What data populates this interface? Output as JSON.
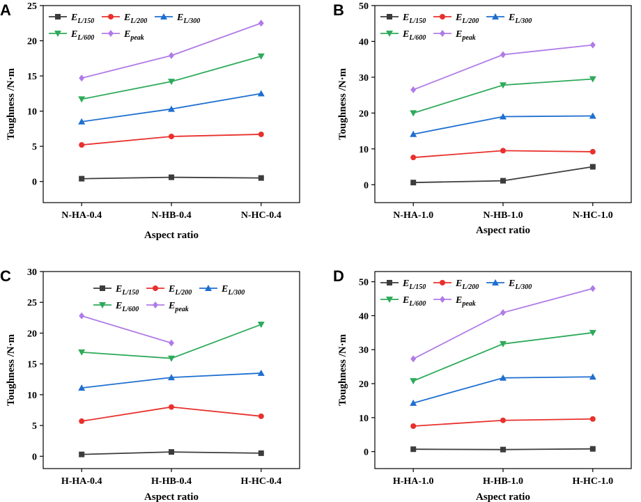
{
  "chart_data": [
    {
      "panel": "A",
      "type": "line",
      "categories": [
        "N-HA-0.4",
        "N-HB-0.4",
        "N-HC-0.4"
      ],
      "xlabel": "Aspect ratio",
      "ylabel": "Toughness /N·m",
      "ylim": [
        -3,
        25
      ],
      "yticks": [
        0,
        5,
        10,
        15,
        20,
        25
      ],
      "legend_position": "top-left",
      "series": [
        {
          "name": "E",
          "sub": "L/150",
          "color": "#3c3c3c",
          "marker": "square",
          "values": [
            0.4,
            0.6,
            0.5
          ]
        },
        {
          "name": "E",
          "sub": "L/200",
          "color": "#e8302c",
          "marker": "circle",
          "values": [
            5.2,
            6.4,
            6.7
          ]
        },
        {
          "name": "E",
          "sub": "L/300",
          "color": "#1e6fd0",
          "marker": "triangle-up",
          "values": [
            8.5,
            10.3,
            12.5
          ]
        },
        {
          "name": "E",
          "sub": "L/600",
          "color": "#2eaa5a",
          "marker": "triangle-down",
          "values": [
            11.7,
            14.2,
            17.8
          ]
        },
        {
          "name": "E",
          "sub": "peak",
          "color": "#b07be8",
          "marker": "diamond",
          "values": [
            14.7,
            17.9,
            22.5
          ]
        }
      ]
    },
    {
      "panel": "B",
      "type": "line",
      "categories": [
        "N-HA-1.0",
        "N-HB-1.0",
        "N-HC-1.0"
      ],
      "xlabel": "Aspect ratio",
      "ylabel": "Toughness /N·m",
      "ylim": [
        -5,
        50
      ],
      "yticks": [
        0,
        10,
        20,
        30,
        40,
        50
      ],
      "legend_position": "top-left",
      "series": [
        {
          "name": "E",
          "sub": "L/150",
          "color": "#3c3c3c",
          "marker": "square",
          "values": [
            0.6,
            1.1,
            5.0
          ]
        },
        {
          "name": "E",
          "sub": "L/200",
          "color": "#e8302c",
          "marker": "circle",
          "values": [
            7.6,
            9.5,
            9.2
          ]
        },
        {
          "name": "E",
          "sub": "L/300",
          "color": "#1e6fd0",
          "marker": "triangle-up",
          "values": [
            14.1,
            19.0,
            19.2
          ]
        },
        {
          "name": "E",
          "sub": "L/600",
          "color": "#2eaa5a",
          "marker": "triangle-down",
          "values": [
            20.0,
            27.8,
            29.5
          ]
        },
        {
          "name": "E",
          "sub": "peak",
          "color": "#b07be8",
          "marker": "diamond",
          "values": [
            26.5,
            36.3,
            39.0
          ]
        }
      ]
    },
    {
      "panel": "C",
      "type": "line",
      "categories": [
        "H-HA-0.4",
        "H-HB-0.4",
        "H-HC-0.4"
      ],
      "xlabel": "Aspect ratio",
      "ylabel": "Toughness /N·m",
      "ylim": [
        -2,
        30
      ],
      "yticks": [
        0,
        5,
        10,
        15,
        20,
        25,
        30
      ],
      "legend_position": "top-right",
      "series": [
        {
          "name": "E",
          "sub": "L/150",
          "color": "#3c3c3c",
          "marker": "square",
          "values": [
            0.3,
            0.7,
            0.5
          ]
        },
        {
          "name": "E",
          "sub": "L/200",
          "color": "#e8302c",
          "marker": "circle",
          "values": [
            5.7,
            8.0,
            6.5
          ]
        },
        {
          "name": "E",
          "sub": "L/300",
          "color": "#1e6fd0",
          "marker": "triangle-up",
          "values": [
            11.1,
            12.8,
            13.5
          ]
        },
        {
          "name": "E",
          "sub": "L/600",
          "color": "#2eaa5a",
          "marker": "triangle-down",
          "values": [
            16.9,
            15.9,
            21.4
          ]
        },
        {
          "name": "E",
          "sub": "peak",
          "color": "#b07be8",
          "marker": "diamond",
          "values": [
            22.8,
            18.4,
            null
          ]
        }
      ]
    },
    {
      "panel": "D",
      "type": "line",
      "categories": [
        "H-HA-1.0",
        "H-HB-1.0",
        "H-HC-1.0"
      ],
      "xlabel": "Aspect ratio",
      "ylabel": "Toughness /N·m",
      "ylim": [
        -5,
        53
      ],
      "yticks": [
        0,
        10,
        20,
        30,
        40,
        50
      ],
      "legend_position": "top-left",
      "series": [
        {
          "name": "E",
          "sub": "L/150",
          "color": "#3c3c3c",
          "marker": "square",
          "values": [
            0.7,
            0.6,
            0.8
          ]
        },
        {
          "name": "E",
          "sub": "L/200",
          "color": "#e8302c",
          "marker": "circle",
          "values": [
            7.5,
            9.2,
            9.6
          ]
        },
        {
          "name": "E",
          "sub": "L/300",
          "color": "#1e6fd0",
          "marker": "triangle-up",
          "values": [
            14.3,
            21.7,
            22.0
          ]
        },
        {
          "name": "E",
          "sub": "L/600",
          "color": "#2eaa5a",
          "marker": "triangle-down",
          "values": [
            20.8,
            31.7,
            35.0
          ]
        },
        {
          "name": "E",
          "sub": "peak",
          "color": "#b07be8",
          "marker": "diamond",
          "values": [
            27.3,
            40.9,
            48.0
          ]
        }
      ]
    }
  ]
}
